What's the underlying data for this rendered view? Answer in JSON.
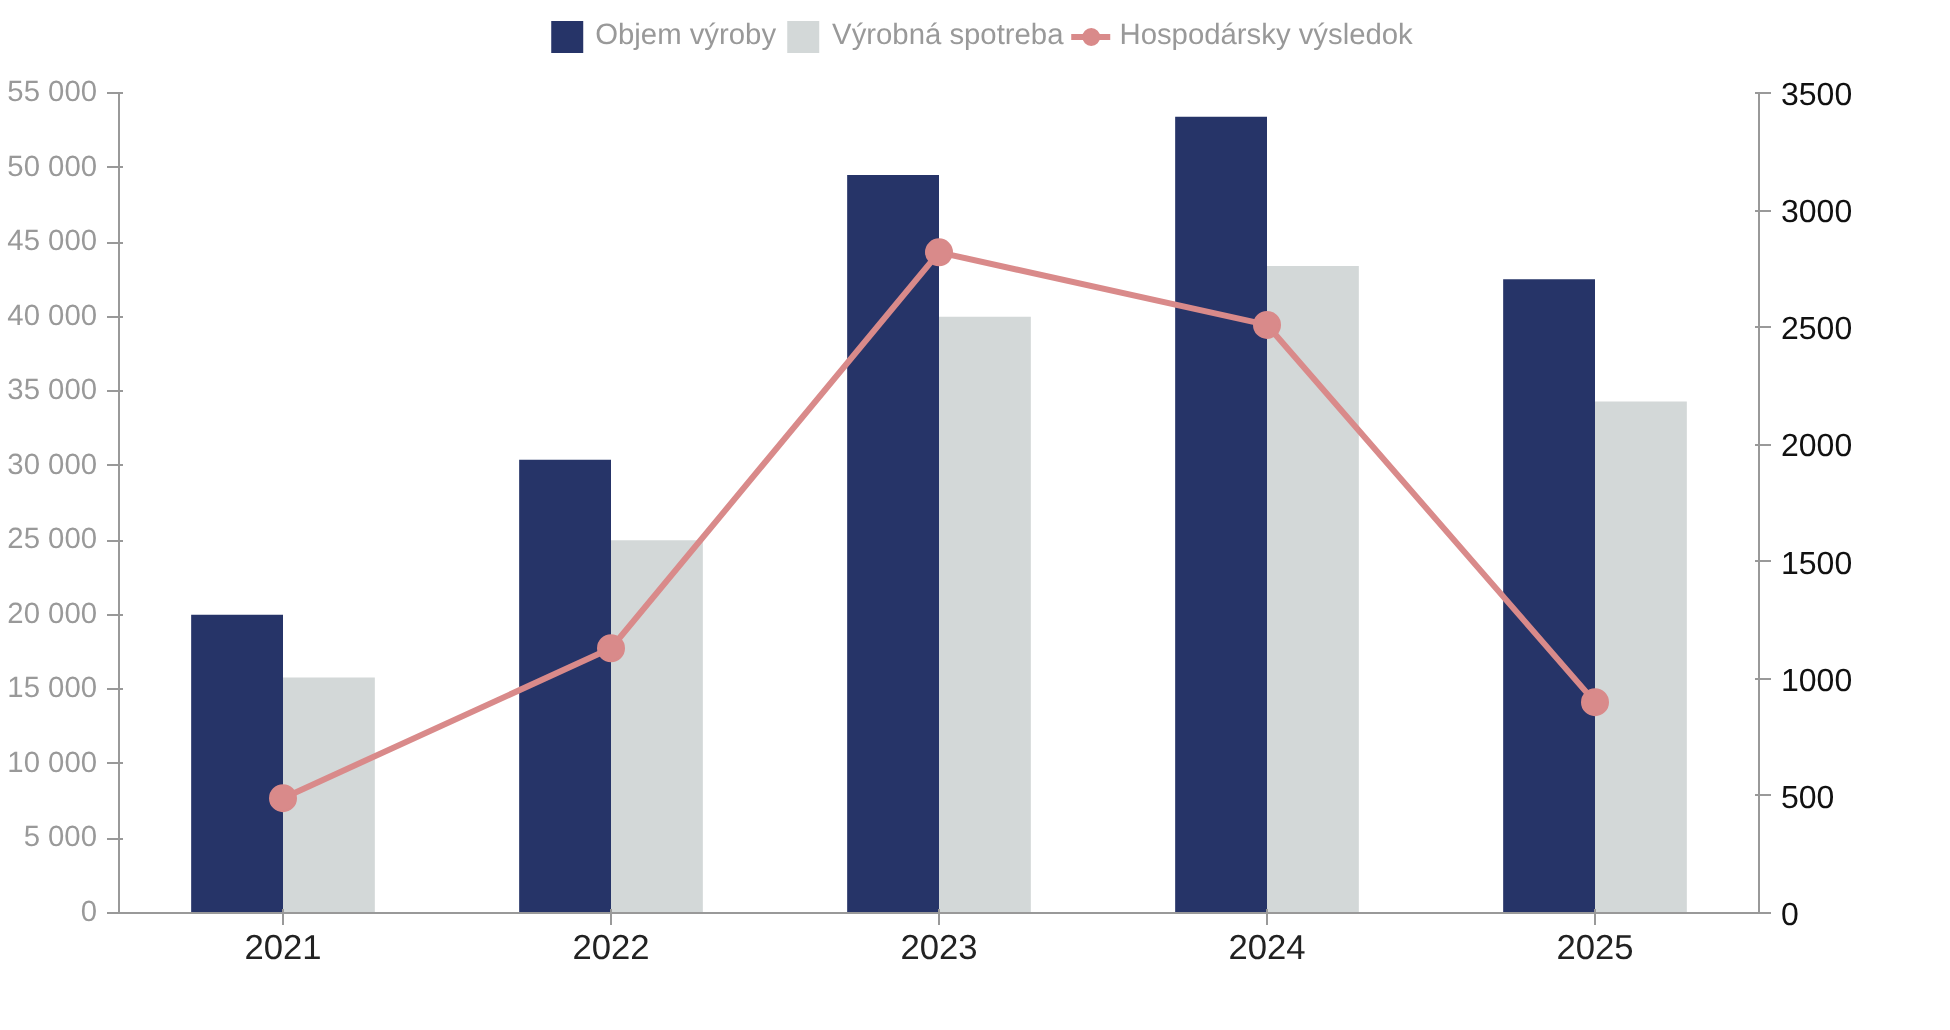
{
  "chart_data": {
    "type": "bar",
    "categories": [
      "2021",
      "2022",
      "2023",
      "2024",
      "2025"
    ],
    "series": [
      {
        "name": "Objem výroby",
        "color": "#263468",
        "values": [
          20000,
          30400,
          49500,
          53400,
          42500
        ]
      },
      {
        "name": "Výrobná spotreba",
        "color": "#d3d8d8",
        "values": [
          15800,
          25000,
          40000,
          43400,
          34300
        ]
      },
      {
        "name": "Hospodársky výsledok",
        "type": "line",
        "axis": "y2",
        "color": "#d98a8a",
        "values": [
          490,
          1130,
          2820,
          2510,
          900
        ]
      }
    ],
    "ylim": [
      0,
      55000
    ],
    "yticks": [
      0,
      {
        "value": 5000,
        "label": "5 000"
      },
      {
        "value": 10000,
        "label": "10 000"
      },
      {
        "value": 15000,
        "label": "15 000"
      },
      {
        "value": 20000,
        "label": "20 000"
      },
      {
        "value": 25000,
        "label": "25 000"
      },
      {
        "value": 30000,
        "label": "30 000"
      },
      {
        "value": 35000,
        "label": "35 000"
      },
      {
        "value": 40000,
        "label": "40 000"
      },
      {
        "value": 45000,
        "label": "45 000"
      },
      {
        "value": 50000,
        "label": "50 000"
      },
      {
        "value": 55000,
        "label": "55 000"
      }
    ],
    "y2lim": [
      0,
      3500
    ],
    "y2ticks": [
      0,
      500,
      1000,
      1500,
      2000,
      2500,
      3000,
      3500
    ],
    "marker": "circle",
    "grid": false,
    "legend": "top"
  }
}
